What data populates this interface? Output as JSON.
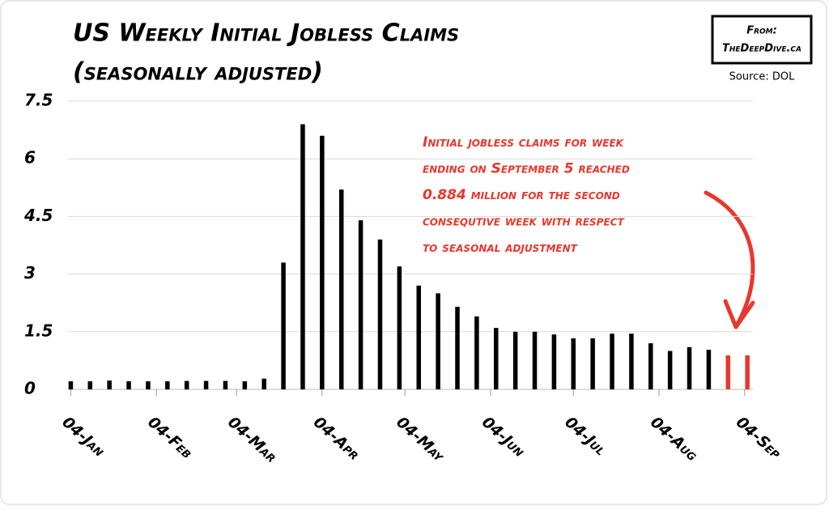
{
  "chart_data": {
    "type": "bar",
    "title": [
      "US Weekly Initial Jobless Claims",
      "(seasonally adjusted)"
    ],
    "credit": [
      "From:",
      "TheDeepDive.ca"
    ],
    "source": "Source: DOL",
    "annotation": [
      "Initial jobless claims for week",
      "ending on September 5 reached",
      "0.884 million for the second",
      "consequtive week with respect",
      "to seasonal adjustment"
    ],
    "x": [
      0,
      7,
      14,
      21,
      28,
      35,
      42,
      49,
      56,
      63,
      70,
      77,
      84,
      91,
      98,
      105,
      112,
      119,
      126,
      133,
      140,
      147,
      154,
      161,
      168,
      175,
      182,
      189,
      196,
      203,
      210,
      217,
      224,
      231,
      238,
      245
    ],
    "values": [
      0.21,
      0.21,
      0.23,
      0.21,
      0.21,
      0.21,
      0.22,
      0.22,
      0.22,
      0.21,
      0.28,
      3.3,
      6.9,
      6.6,
      5.2,
      4.4,
      3.9,
      3.2,
      2.7,
      2.5,
      2.15,
      1.9,
      1.6,
      1.5,
      1.5,
      1.43,
      1.33,
      1.33,
      1.45,
      1.45,
      1.2,
      1.0,
      1.1,
      1.03,
      0.884,
      0.884
    ],
    "colors": [
      "#000",
      "#000",
      "#000",
      "#000",
      "#000",
      "#000",
      "#000",
      "#000",
      "#000",
      "#000",
      "#000",
      "#000",
      "#000",
      "#000",
      "#000",
      "#000",
      "#000",
      "#000",
      "#000",
      "#000",
      "#000",
      "#000",
      "#000",
      "#000",
      "#000",
      "#000",
      "#000",
      "#000",
      "#000",
      "#000",
      "#000",
      "#000",
      "#000",
      "#000",
      "#e8372c",
      "#e8372c"
    ],
    "xlim": [
      -1,
      247
    ],
    "xticks": [
      {
        "value": 0,
        "label": "04-Jan"
      },
      {
        "value": 31,
        "label": "04-Feb"
      },
      {
        "value": 60,
        "label": "04-Mar"
      },
      {
        "value": 91,
        "label": "04-Apr"
      },
      {
        "value": 121,
        "label": "04-May"
      },
      {
        "value": 152,
        "label": "04-Jun"
      },
      {
        "value": 182,
        "label": "04-Jul"
      },
      {
        "value": 213,
        "label": "04-Aug"
      },
      {
        "value": 244,
        "label": "04-Sep"
      }
    ],
    "ylim": [
      0,
      7.5
    ],
    "yticks": [
      0,
      1.5,
      3,
      4.5,
      6,
      7.5
    ],
    "grid": true
  }
}
